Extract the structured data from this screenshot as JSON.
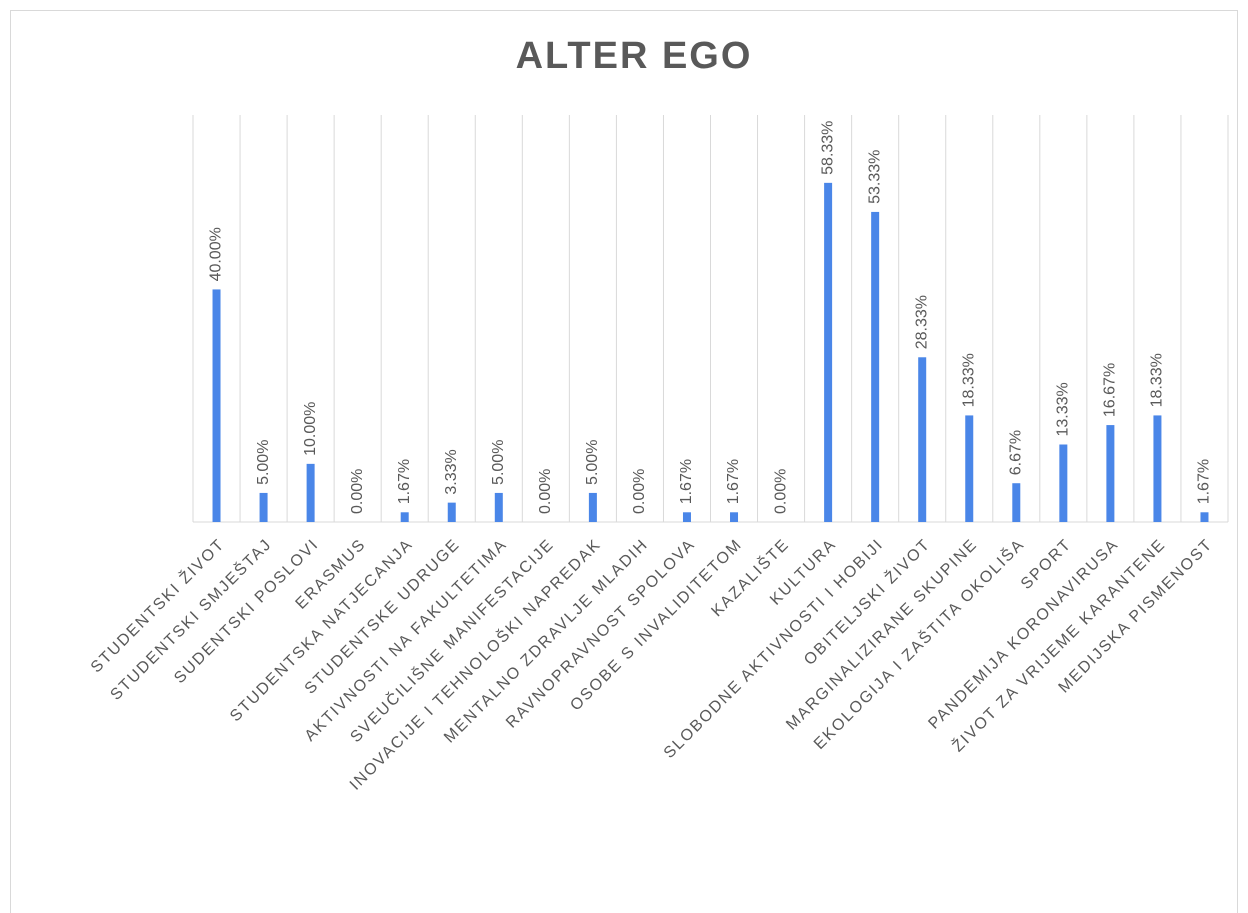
{
  "chart_data": {
    "type": "bar",
    "title": "ALTER EGO",
    "categories": [
      "STUDENTSKI ŽIVOT",
      "STUDENTSKI SMJEŠTAJ",
      "SUDENTSKI POSLOVI",
      "ERASMUS",
      "STUDENTSKA NATJECANJA",
      "STUDENTSKE UDRUGE",
      "AKTIVNOSTI NA FAKULTETIMA",
      "SVEUČILIŠNE MANIFESTACIJE",
      "INOVACIJE I TEHNOLOŠKI NAPREDAK",
      "MENTALNO ZDRAVLJE MLADIH",
      "RAVNOPRAVNOST SPOLOVA",
      "OSOBE S INVALIDITETOM",
      "KAZALIŠTE",
      "KULTURA",
      "SLOBODNE AKTIVNOSTI I HOBIJI",
      "OBITELJSKI ŽIVOT",
      "MARGINALIZIRANE SKUPINE",
      "EKOLOGIJA I ZAŠTITA OKOLIŠA",
      "SPORT",
      "PANDEMIJA KORONAVIRUSA",
      "ŽIVOT ZA VRIJEME KARANTENE",
      "MEDIJSKA PISMENOST"
    ],
    "values": [
      40.0,
      5.0,
      10.0,
      0.0,
      1.67,
      3.33,
      5.0,
      0.0,
      5.0,
      0.0,
      1.67,
      1.67,
      0.0,
      58.33,
      53.33,
      28.33,
      18.33,
      6.67,
      13.33,
      16.67,
      18.33,
      1.67
    ],
    "value_labels": [
      "40.00%",
      "5.00%",
      "10.00%",
      "0.00%",
      "1.67%",
      "3.33%",
      "5.00%",
      "0.00%",
      "5.00%",
      "0.00%",
      "1.67%",
      "1.67%",
      "0.00%",
      "58.33%",
      "53.33%",
      "28.33%",
      "18.33%",
      "6.67%",
      "13.33%",
      "16.67%",
      "18.33%",
      "1.67%"
    ],
    "color": "#4a86e8",
    "ylim": [
      0,
      70
    ]
  }
}
